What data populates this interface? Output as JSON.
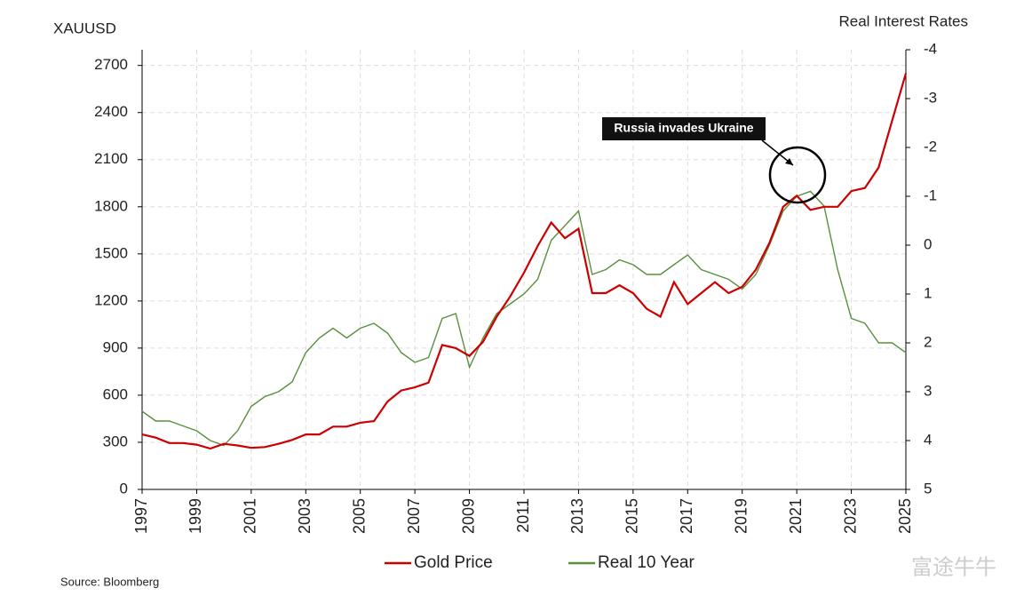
{
  "chart_data": {
    "type": "line",
    "y_label": "XAUUSD",
    "y2_label": "Real Interest Rates",
    "source": "Source:  Bloomberg",
    "watermark": "富途牛牛",
    "annotation": "Russia invades Ukraine",
    "x": [
      1997.0,
      1997.5,
      1998.0,
      1998.5,
      1999.0,
      1999.5,
      2000.0,
      2000.5,
      2001.0,
      2001.5,
      2002.0,
      2002.5,
      2003.0,
      2003.5,
      2004.0,
      2004.5,
      2005.0,
      2005.5,
      2006.0,
      2006.5,
      2007.0,
      2007.5,
      2008.0,
      2008.5,
      2009.0,
      2009.5,
      2010.0,
      2010.5,
      2011.0,
      2011.5,
      2012.0,
      2012.5,
      2013.0,
      2013.5,
      2014.0,
      2014.5,
      2015.0,
      2015.5,
      2016.0,
      2016.5,
      2017.0,
      2017.5,
      2018.0,
      2018.5,
      2019.0,
      2019.5,
      2020.0,
      2020.5,
      2021.0,
      2021.5,
      2022.0,
      2022.5,
      2023.0,
      2023.5,
      2024.0,
      2024.5,
      2025.0
    ],
    "series": [
      {
        "name": "Gold Price",
        "color": "#cc0000",
        "axis": "y",
        "values": [
          350,
          330,
          295,
          295,
          285,
          260,
          290,
          280,
          265,
          270,
          290,
          315,
          350,
          350,
          400,
          400,
          425,
          435,
          560,
          630,
          650,
          680,
          920,
          900,
          850,
          940,
          1100,
          1230,
          1380,
          1550,
          1700,
          1600,
          1660,
          1250,
          1250,
          1300,
          1250,
          1150,
          1100,
          1320,
          1180,
          1250,
          1320,
          1250,
          1290,
          1400,
          1570,
          1800,
          1870,
          1780,
          1800,
          1800,
          1900,
          1920,
          2050,
          2350,
          2650
        ]
      },
      {
        "name": "Real 10 Year",
        "color": "#5a8f3c",
        "axis": "y2",
        "values": [
          3.4,
          3.6,
          3.6,
          3.7,
          3.8,
          4.0,
          4.1,
          3.8,
          3.3,
          3.1,
          3.0,
          2.8,
          2.2,
          1.9,
          1.7,
          1.9,
          1.7,
          1.6,
          1.8,
          2.2,
          2.4,
          2.3,
          1.5,
          1.4,
          2.5,
          1.9,
          1.4,
          1.2,
          1.0,
          0.7,
          -0.1,
          -0.4,
          -0.7,
          0.6,
          0.5,
          0.3,
          0.4,
          0.6,
          0.6,
          0.4,
          0.2,
          0.5,
          0.6,
          0.7,
          0.9,
          0.6,
          0.0,
          -0.7,
          -1.0,
          -1.1,
          -0.8,
          0.5,
          1.5,
          1.6,
          2.0,
          2.0,
          2.2
        ]
      }
    ],
    "xlim": [
      1997,
      2025
    ],
    "xticks": [
      1997,
      1999,
      2001,
      2003,
      2005,
      2007,
      2009,
      2011,
      2013,
      2015,
      2017,
      2019,
      2021,
      2023,
      2025
    ],
    "ylim": [
      0,
      2800
    ],
    "yticks": [
      0,
      300,
      600,
      900,
      1200,
      1500,
      1800,
      2100,
      2400,
      2700
    ],
    "y2lim": [
      5,
      -4
    ],
    "y2ticks": [
      5,
      4,
      3,
      2,
      1,
      0,
      -1,
      -2,
      -3,
      -4
    ],
    "grid": true
  }
}
